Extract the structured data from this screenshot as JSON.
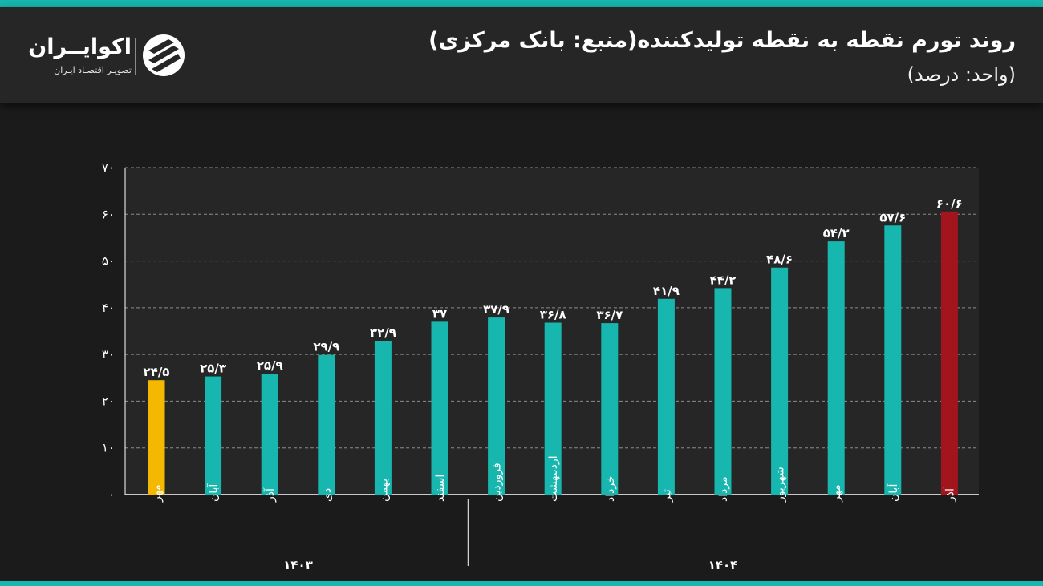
{
  "header": {
    "title": "روند تورم نقطه به نقطه تولیدکننده(منبع: بانک مرکزی)",
    "subtitle": "(واحد: درصد)"
  },
  "logo": {
    "name": "اکوایــران",
    "tagline": "تصویـر اقتصـاد ایـران"
  },
  "colors": {
    "accent": "#17b6ae",
    "bar": "#17b6ae",
    "first_bar": "#f5b800",
    "last_bar": "#a3151c",
    "background": "#1b1b1b",
    "header_bg": "#262626"
  },
  "chart_data": {
    "type": "bar",
    "title": "روند تورم نقطه به نقطه تولیدکننده(منبع: بانک مرکزی)",
    "ylabel": "(واحد: درصد)",
    "xlabel": "",
    "ylim": [
      0,
      70
    ],
    "yticks": [
      0,
      10,
      20,
      30,
      40,
      50,
      60,
      70
    ],
    "ytick_labels": [
      "۰",
      "۱۰",
      "۲۰",
      "۳۰",
      "۴۰",
      "۵۰",
      "۶۰",
      "۷۰"
    ],
    "grid": true,
    "categories": [
      "مهر",
      "آبان",
      "آذر",
      "دی",
      "بهمن",
      "اسفند",
      "فروردین",
      "اردیبهشت",
      "خرداد",
      "تیر",
      "مرداد",
      "شهریور",
      "مهر",
      "آبان",
      "آذر"
    ],
    "values": [
      24.5,
      25.3,
      25.9,
      29.9,
      32.9,
      37,
      37.9,
      36.8,
      36.7,
      41.9,
      44.2,
      48.6,
      54.2,
      57.6,
      60.6
    ],
    "value_labels": [
      "۲۴/۵",
      "۲۵/۳",
      "۲۵/۹",
      "۲۹/۹",
      "۳۲/۹",
      "۳۷",
      "۳۷/۹",
      "۳۶/۸",
      "۳۶/۷",
      "۴۱/۹",
      "۴۴/۲",
      "۴۸/۶",
      "۵۴/۲",
      "۵۷/۶",
      "۶۰/۶"
    ],
    "groups": [
      {
        "label": "۱۴۰۳",
        "start": 0,
        "end": 5
      },
      {
        "label": "۱۴۰۴",
        "start": 6,
        "end": 14
      }
    ]
  }
}
